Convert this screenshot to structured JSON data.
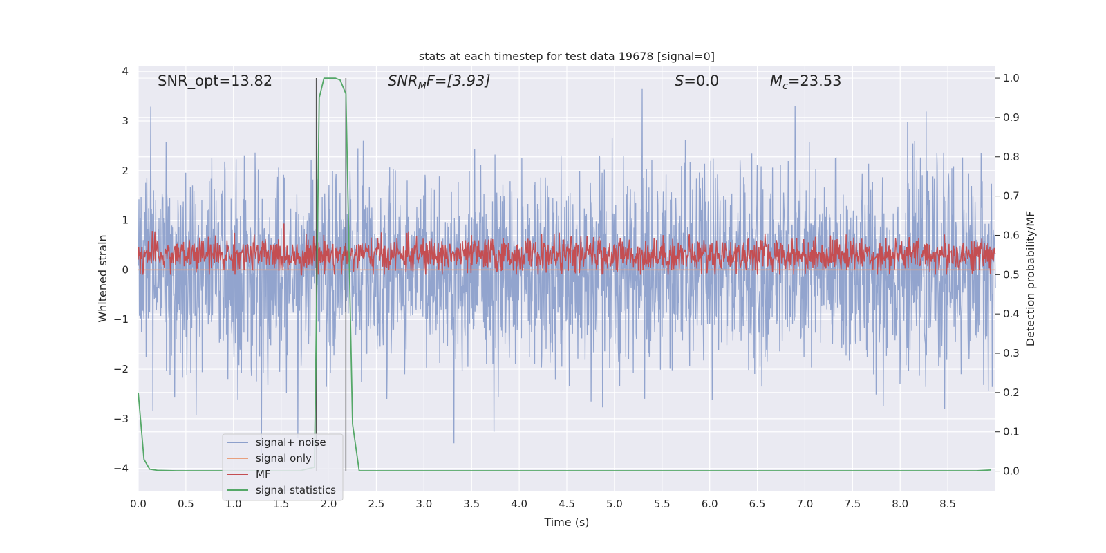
{
  "chart_data": {
    "type": "line",
    "title": "stats at each timestep for test data 19678 [signal=0]",
    "xlabel": "Time (s)",
    "ylabel_left": "Whitened strain",
    "ylabel_right": "Detection probability/MF",
    "xlim": [
      0.0,
      9.0
    ],
    "ylim_left": [
      -4.45,
      4.1
    ],
    "ylim_right": [
      -0.05,
      1.03
    ],
    "x_ticks": [
      "0.0",
      "0.5",
      "1.0",
      "1.5",
      "2.0",
      "2.5",
      "3.0",
      "3.5",
      "4.0",
      "4.5",
      "5.0",
      "5.5",
      "6.0",
      "6.5",
      "7.0",
      "7.5",
      "8.0",
      "8.5"
    ],
    "y_ticks_left": [
      "4",
      "3",
      "2",
      "1",
      "0",
      "−1",
      "−2",
      "−3",
      "−4"
    ],
    "y_ticks_right": [
      "1.0",
      "0.9",
      "0.8",
      "0.7",
      "0.6",
      "0.5",
      "0.4",
      "0.3",
      "0.2",
      "0.1",
      "0.0"
    ],
    "grid": true,
    "legend_position": "lower-left",
    "annotations": {
      "snr_opt": "SNR_opt=13.82",
      "snr_mf_prefix": "SNR",
      "snr_mf_sub": "M",
      "snr_mf_suffix": "F=[3.93]",
      "s_prefix": "S",
      "s_suffix": "=0.0",
      "mc_prefix": "M",
      "mc_sub": "c",
      "mc_suffix": "=23.53"
    },
    "vertical_markers": [
      1.87,
      2.18
    ],
    "series": [
      {
        "name": "signal+ noise",
        "color": "#8da0cb",
        "axis": "left",
        "description_stats": {
          "mean": 0.0,
          "std": 1.0,
          "range": [
            -3.7,
            3.7
          ]
        }
      },
      {
        "name": "signal only",
        "color": "#e8a07e",
        "axis": "left",
        "x": [
          0.0,
          9.0
        ],
        "y": [
          0.0,
          0.0
        ]
      },
      {
        "name": "MF",
        "color": "#c44e52",
        "axis": "right",
        "description_stats": {
          "mean": 0.55,
          "range": [
            0.5,
            0.63
          ]
        }
      },
      {
        "name": "signal statistics",
        "color": "#55a868",
        "axis": "right",
        "x": [
          0.0,
          0.06,
          0.12,
          0.2,
          0.4,
          1.0,
          1.7,
          1.85,
          1.9,
          1.95,
          2.0,
          2.07,
          2.12,
          2.18,
          2.25,
          2.32,
          2.5,
          4.0,
          6.0,
          8.0,
          8.8,
          8.95
        ],
        "y": [
          0.2,
          0.03,
          0.005,
          0.002,
          0.001,
          0.001,
          0.001,
          0.01,
          0.95,
          1.0,
          1.0,
          1.0,
          0.995,
          0.96,
          0.12,
          0.001,
          0.001,
          0.001,
          0.001,
          0.001,
          0.001,
          0.003
        ]
      }
    ]
  }
}
